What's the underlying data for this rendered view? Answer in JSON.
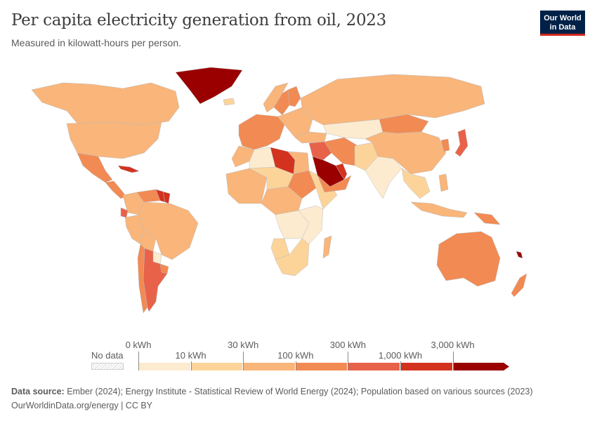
{
  "header": {
    "title": "Per capita electricity generation from oil, 2023",
    "subtitle": "Measured in kilowatt-hours per person.",
    "logo_line1": "Our World",
    "logo_line2": "in Data"
  },
  "legend": {
    "no_data_label": "No data",
    "ticks": [
      "0 kWh",
      "10 kWh",
      "30 kWh",
      "100 kWh",
      "300 kWh",
      "1,000 kWh",
      "3,000 kWh"
    ],
    "colors": [
      "#fdebd0",
      "#fcd49a",
      "#f9b57a",
      "#f28a53",
      "#e8624a",
      "#d3321f",
      "#9a0000"
    ],
    "no_data_color": "#e6e6e6"
  },
  "map_data": {
    "regions": [
      {
        "name": "Greenland",
        "bin": 6
      },
      {
        "name": "Canada",
        "bin": 2
      },
      {
        "name": "United States",
        "bin": 2
      },
      {
        "name": "Mexico",
        "bin": 3
      },
      {
        "name": "Cuba",
        "bin": 5
      },
      {
        "name": "Central America",
        "bin": 3
      },
      {
        "name": "Venezuela",
        "bin": 3
      },
      {
        "name": "Guyana",
        "bin": 5
      },
      {
        "name": "Suriname",
        "bin": 5
      },
      {
        "name": "Ecuador",
        "bin": 4
      },
      {
        "name": "Colombia",
        "bin": 2
      },
      {
        "name": "Brazil",
        "bin": 2
      },
      {
        "name": "Peru",
        "bin": 2
      },
      {
        "name": "Bolivia",
        "bin": 2
      },
      {
        "name": "Paraguay",
        "bin": 0
      },
      {
        "name": "Chile",
        "bin": 3
      },
      {
        "name": "Argentina",
        "bin": 4
      },
      {
        "name": "Uruguay",
        "bin": 3
      },
      {
        "name": "Iceland",
        "bin": 1
      },
      {
        "name": "Norway",
        "bin": 2
      },
      {
        "name": "Sweden",
        "bin": 3
      },
      {
        "name": "Finland",
        "bin": 3
      },
      {
        "name": "Western Europe",
        "bin": 3
      },
      {
        "name": "Eastern Europe",
        "bin": 2
      },
      {
        "name": "Russia",
        "bin": 2
      },
      {
        "name": "Turkey",
        "bin": 2
      },
      {
        "name": "Morocco",
        "bin": 2
      },
      {
        "name": "Algeria",
        "bin": 0
      },
      {
        "name": "Libya",
        "bin": 5
      },
      {
        "name": "Egypt",
        "bin": 2
      },
      {
        "name": "West Africa",
        "bin": 2
      },
      {
        "name": "Mali and Niger",
        "bin": 1
      },
      {
        "name": "Sudan",
        "bin": 3
      },
      {
        "name": "Horn of Africa",
        "bin": 1
      },
      {
        "name": "Central Africa",
        "bin": 2
      },
      {
        "name": "DR Congo",
        "bin": 0
      },
      {
        "name": "Angola",
        "bin": 1
      },
      {
        "name": "Southern Africa",
        "bin": 1
      },
      {
        "name": "East Africa",
        "bin": 0
      },
      {
        "name": "Madagascar",
        "bin": 2
      },
      {
        "name": "Saudi Arabia",
        "bin": 6
      },
      {
        "name": "Gulf states",
        "bin": 5
      },
      {
        "name": "Oman and Yemen",
        "bin": 3
      },
      {
        "name": "Iraq and Syria",
        "bin": 4
      },
      {
        "name": "Iran",
        "bin": 3
      },
      {
        "name": "Afghanistan and Pakistan",
        "bin": 1
      },
      {
        "name": "Central Asia",
        "bin": 0
      },
      {
        "name": "India",
        "bin": 0
      },
      {
        "name": "China",
        "bin": 2
      },
      {
        "name": "Mongolia",
        "bin": 3
      },
      {
        "name": "Korea",
        "bin": 3
      },
      {
        "name": "Japan",
        "bin": 4
      },
      {
        "name": "Southeast Asia",
        "bin": 1
      },
      {
        "name": "Indonesia",
        "bin": 2
      },
      {
        "name": "Philippines",
        "bin": 2
      },
      {
        "name": "Papua New Guinea",
        "bin": 3
      },
      {
        "name": "Australia",
        "bin": 3
      },
      {
        "name": "New Zealand",
        "bin": 3
      },
      {
        "name": "New Caledonia",
        "bin": 6
      }
    ]
  },
  "footer": {
    "source_label": "Data source:",
    "source_text": "Ember (2024); Energy Institute - Statistical Review of World Energy (2024); Population based on various sources (2023)",
    "url_line": "OurWorldinData.org/energy | CC BY"
  }
}
